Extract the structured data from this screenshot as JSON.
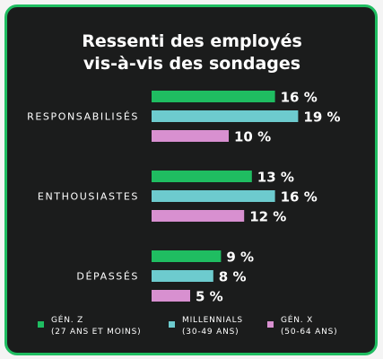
{
  "chart_data": {
    "type": "bar",
    "orientation": "horizontal",
    "title": [
      "Ressenti des employés",
      "vis-à-vis des sondages"
    ],
    "categories": [
      "RESPONSABILISÉS",
      "ENTHOUSIASTES",
      "DÉPASSÉS"
    ],
    "series": [
      {
        "name": "GÉN. Z",
        "name_detail": "(27 ANS ET MOINS)",
        "color": "#1fbd61",
        "values": [
          16,
          13,
          9
        ]
      },
      {
        "name": "MILLENNIALS",
        "name_detail": "(30-49 ANS)",
        "color": "#6dcbce",
        "values": [
          19,
          16,
          8
        ]
      },
      {
        "name": "GÉN. X",
        "name_detail": "(50-64 ANS)",
        "color": "#d890d0",
        "values": [
          10,
          12,
          5
        ]
      }
    ],
    "value_suffix": " %",
    "legend_position": "bottom",
    "grid": false
  }
}
